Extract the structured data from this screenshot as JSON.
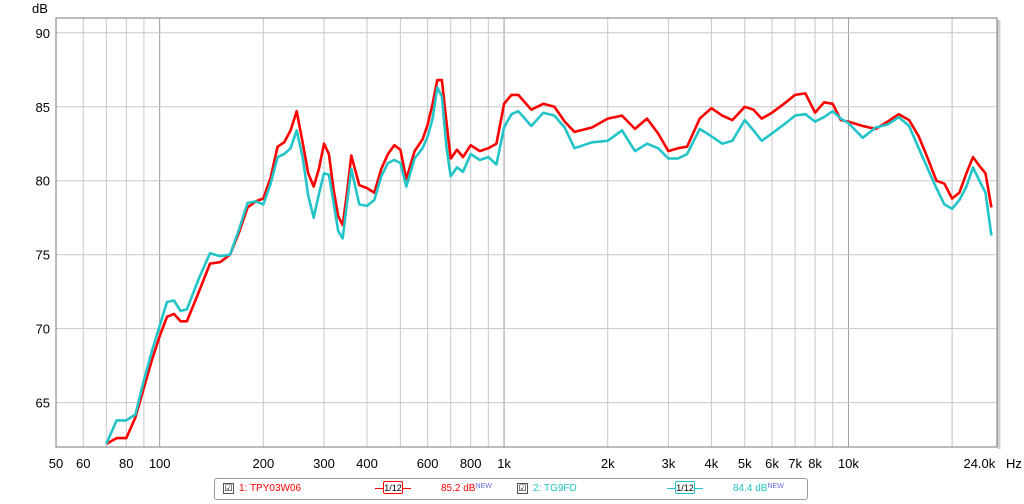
{
  "chart_data": {
    "type": "line",
    "ylabel": "dB",
    "xunit": "Hz",
    "xscale": "log",
    "xlim": [
      50,
      27000
    ],
    "ylim": [
      62,
      91
    ],
    "yticks": [
      65,
      70,
      75,
      80,
      85,
      90
    ],
    "xticks": [
      {
        "v": 50,
        "label": "50"
      },
      {
        "v": 60,
        "label": "60"
      },
      {
        "v": 80,
        "label": "80"
      },
      {
        "v": 100,
        "label": "100"
      },
      {
        "v": 200,
        "label": "200"
      },
      {
        "v": 300,
        "label": "300"
      },
      {
        "v": 400,
        "label": "400"
      },
      {
        "v": 600,
        "label": "600"
      },
      {
        "v": 800,
        "label": "800"
      },
      {
        "v": 1000,
        "label": "1k"
      },
      {
        "v": 2000,
        "label": "2k"
      },
      {
        "v": 3000,
        "label": "3k"
      },
      {
        "v": 4000,
        "label": "4k"
      },
      {
        "v": 5000,
        "label": "5k"
      },
      {
        "v": 6000,
        "label": "6k"
      },
      {
        "v": 7000,
        "label": "7k"
      },
      {
        "v": 8000,
        "label": "8k"
      },
      {
        "v": 10000,
        "label": "10k"
      },
      {
        "v": 24000,
        "label": "24.0k"
      }
    ],
    "grid": true,
    "series": [
      {
        "name": "1: TPY03W06",
        "color": "#ff0000",
        "x": [
          70,
          75,
          80,
          85,
          90,
          95,
          100,
          105,
          110,
          115,
          120,
          130,
          140,
          150,
          160,
          170,
          180,
          190,
          200,
          210,
          220,
          230,
          240,
          250,
          260,
          270,
          280,
          290,
          300,
          310,
          320,
          330,
          340,
          350,
          360,
          380,
          400,
          420,
          440,
          460,
          480,
          500,
          520,
          550,
          580,
          600,
          620,
          640,
          660,
          680,
          700,
          730,
          760,
          800,
          850,
          900,
          950,
          1000,
          1050,
          1100,
          1200,
          1300,
          1400,
          1500,
          1600,
          1800,
          2000,
          2200,
          2400,
          2600,
          2800,
          3000,
          3200,
          3400,
          3700,
          4000,
          4300,
          4600,
          5000,
          5300,
          5600,
          6000,
          6500,
          7000,
          7500,
          8000,
          8500,
          9000,
          9500,
          10000,
          11000,
          12000,
          13000,
          14000,
          15000,
          16000,
          17000,
          18000,
          19000,
          20000,
          21000,
          22000,
          23000,
          24000,
          25000,
          26000
        ],
        "values": [
          62.2,
          62.6,
          62.6,
          64.0,
          66.0,
          67.9,
          69.5,
          70.8,
          71.0,
          70.5,
          70.5,
          72.5,
          74.4,
          74.5,
          75.0,
          76.5,
          78.2,
          78.6,
          78.8,
          80.2,
          82.3,
          82.6,
          83.4,
          84.7,
          82.6,
          80.5,
          79.6,
          80.8,
          82.5,
          81.8,
          79.4,
          77.6,
          77.0,
          79.2,
          81.7,
          79.7,
          79.5,
          79.2,
          80.8,
          81.8,
          82.4,
          82.1,
          80.1,
          82.0,
          82.8,
          83.8,
          85.2,
          86.8,
          86.8,
          84.0,
          81.5,
          82.1,
          81.6,
          82.4,
          82.0,
          82.2,
          82.5,
          85.2,
          85.8,
          85.8,
          84.8,
          85.2,
          85.0,
          84.0,
          83.3,
          83.6,
          84.2,
          84.4,
          83.5,
          84.2,
          83.2,
          82.0,
          82.2,
          82.3,
          84.2,
          84.9,
          84.4,
          84.1,
          85.0,
          84.8,
          84.2,
          84.6,
          85.2,
          85.8,
          85.9,
          84.6,
          85.3,
          85.2,
          84.1,
          84.0,
          83.7,
          83.5,
          84.0,
          84.5,
          84.1,
          83.0,
          81.5,
          80.0,
          79.8,
          78.8,
          79.2,
          80.5,
          81.6,
          81.0,
          80.5,
          78.2
        ]
      },
      {
        "name": "2: TG9FD",
        "color": "#22c4c8",
        "x": [
          70,
          75,
          80,
          85,
          90,
          95,
          100,
          105,
          110,
          115,
          120,
          130,
          140,
          150,
          160,
          170,
          180,
          190,
          200,
          210,
          220,
          230,
          240,
          250,
          260,
          270,
          280,
          290,
          300,
          310,
          320,
          330,
          340,
          350,
          360,
          380,
          400,
          420,
          440,
          460,
          480,
          500,
          520,
          550,
          580,
          600,
          620,
          640,
          660,
          680,
          700,
          730,
          760,
          800,
          850,
          900,
          950,
          1000,
          1050,
          1100,
          1200,
          1300,
          1400,
          1500,
          1600,
          1800,
          2000,
          2200,
          2400,
          2600,
          2800,
          3000,
          3200,
          3400,
          3700,
          4000,
          4300,
          4600,
          5000,
          5300,
          5600,
          6000,
          6500,
          7000,
          7500,
          8000,
          8500,
          9000,
          9500,
          10000,
          11000,
          12000,
          13000,
          14000,
          15000,
          16000,
          17000,
          18000,
          19000,
          20000,
          21000,
          22000,
          23000,
          24000,
          25000,
          26000
        ],
        "values": [
          62.2,
          63.8,
          63.8,
          64.2,
          66.5,
          68.5,
          70.2,
          71.8,
          71.9,
          71.2,
          71.3,
          73.4,
          75.1,
          74.9,
          75.0,
          76.7,
          78.5,
          78.6,
          78.4,
          79.8,
          81.6,
          81.8,
          82.2,
          83.4,
          81.6,
          79.0,
          77.5,
          79.1,
          80.5,
          80.4,
          78.5,
          76.6,
          76.1,
          78.5,
          80.8,
          78.4,
          78.3,
          78.7,
          80.3,
          81.2,
          81.4,
          81.2,
          79.6,
          81.5,
          82.2,
          83.0,
          84.2,
          86.3,
          85.7,
          82.3,
          80.3,
          80.9,
          80.6,
          81.8,
          81.4,
          81.6,
          81.1,
          83.6,
          84.5,
          84.7,
          83.7,
          84.6,
          84.4,
          83.6,
          82.2,
          82.6,
          82.7,
          83.4,
          82.0,
          82.5,
          82.2,
          81.5,
          81.5,
          81.8,
          83.5,
          83.0,
          82.5,
          82.7,
          84.1,
          83.4,
          82.7,
          83.2,
          83.8,
          84.4,
          84.5,
          84.0,
          84.3,
          84.7,
          84.2,
          83.9,
          82.9,
          83.6,
          83.8,
          84.3,
          83.7,
          82.2,
          80.8,
          79.5,
          78.4,
          78.1,
          78.7,
          79.6,
          80.9,
          80.0,
          79.2,
          76.3
        ]
      }
    ]
  },
  "legend": [
    {
      "checked": "☑",
      "name": "1: TPY03W06",
      "smoothing": "1/12",
      "level": "85.2 dB",
      "tag": "NEW",
      "color": "#ff0000"
    },
    {
      "checked": "☑",
      "name": "2: TG9FD",
      "smoothing": "1/12",
      "level": "84.4 dB",
      "tag": "NEW",
      "color": "#22c4c8"
    }
  ]
}
